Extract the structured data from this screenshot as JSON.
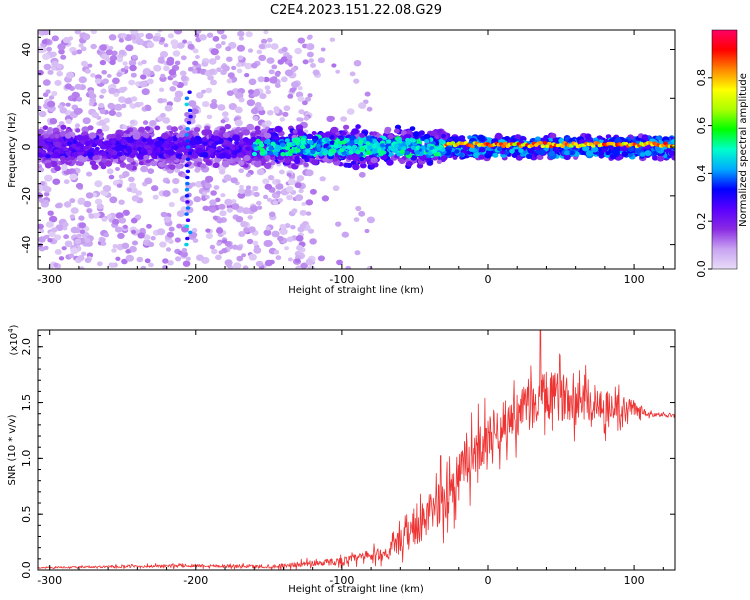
{
  "title": "C2E4.2023.151.22.08.G29",
  "chart_data": [
    {
      "type": "heatmap",
      "name": "spectrogram",
      "xlabel": "Height of straight line (km)",
      "ylabel": "Frequency (Hz)",
      "xlim": [
        -308,
        128
      ],
      "ylim": [
        -50,
        48
      ],
      "xticks": [
        -300,
        -200,
        -100,
        0,
        100
      ],
      "yticks": [
        40,
        20,
        0,
        -20,
        -40
      ],
      "colorbar": {
        "label": "Normalized spectral amplitude",
        "ticks": [
          0.0,
          0.2,
          0.4,
          0.6,
          0.8
        ],
        "tick_labels": [
          "0.0",
          "0.2",
          "0.4",
          "0.6",
          "0.8"
        ],
        "range": [
          0,
          1
        ],
        "colormap": [
          "#e8dcf8",
          "#c9a4f2",
          "#8a2be2",
          "#5a00ff",
          "#0000ff",
          "#00aaff",
          "#00ffcc",
          "#00ff00",
          "#aaff00",
          "#ffff00",
          "#ff8800",
          "#ff0000",
          "#ff0066"
        ]
      },
      "features": {
        "dense_band_hz": [
          -5,
          5
        ],
        "scatter_until_km": -120,
        "signal_onset_km": -30,
        "peak_amplitude_band_km": [
          -30,
          128
        ],
        "vertical_streak_km": -205
      }
    },
    {
      "type": "line",
      "name": "snr",
      "xlabel": "Height of straight line (km)",
      "ylabel": "SNR (10 * v/v)",
      "multiplier_label": "(x10",
      "multiplier_exponent": "4",
      "xlim": [
        -308,
        128
      ],
      "ylim": [
        0,
        2.15
      ],
      "xticks": [
        -300,
        -200,
        -100,
        0,
        100
      ],
      "yticks": [
        0.0,
        0.5,
        1.0,
        1.5,
        2.0
      ],
      "ytick_labels": [
        "0.0",
        "0.5",
        "1.0",
        "1.5",
        "2.0"
      ],
      "color": "#ee3333",
      "envelope": [
        {
          "x": -308,
          "base": 0.02,
          "spread": 0.01
        },
        {
          "x": -200,
          "base": 0.04,
          "spread": 0.03
        },
        {
          "x": -150,
          "base": 0.03,
          "spread": 0.03
        },
        {
          "x": -100,
          "base": 0.08,
          "spread": 0.07
        },
        {
          "x": -70,
          "base": 0.15,
          "spread": 0.12
        },
        {
          "x": -50,
          "base": 0.35,
          "spread": 0.3
        },
        {
          "x": -30,
          "base": 0.65,
          "spread": 0.45
        },
        {
          "x": -15,
          "base": 0.95,
          "spread": 0.45
        },
        {
          "x": 0,
          "base": 1.2,
          "spread": 0.4
        },
        {
          "x": 20,
          "base": 1.4,
          "spread": 0.4
        },
        {
          "x": 40,
          "base": 1.55,
          "spread": 0.45
        },
        {
          "x": 60,
          "base": 1.55,
          "spread": 0.4
        },
        {
          "x": 85,
          "base": 1.45,
          "spread": 0.3
        },
        {
          "x": 100,
          "base": 1.45,
          "spread": 0.15
        },
        {
          "x": 110,
          "base": 1.4,
          "spread": 0.04
        },
        {
          "x": 128,
          "base": 1.38,
          "spread": 0.03
        }
      ],
      "peak": {
        "x": 36,
        "y": 2.15
      }
    }
  ]
}
